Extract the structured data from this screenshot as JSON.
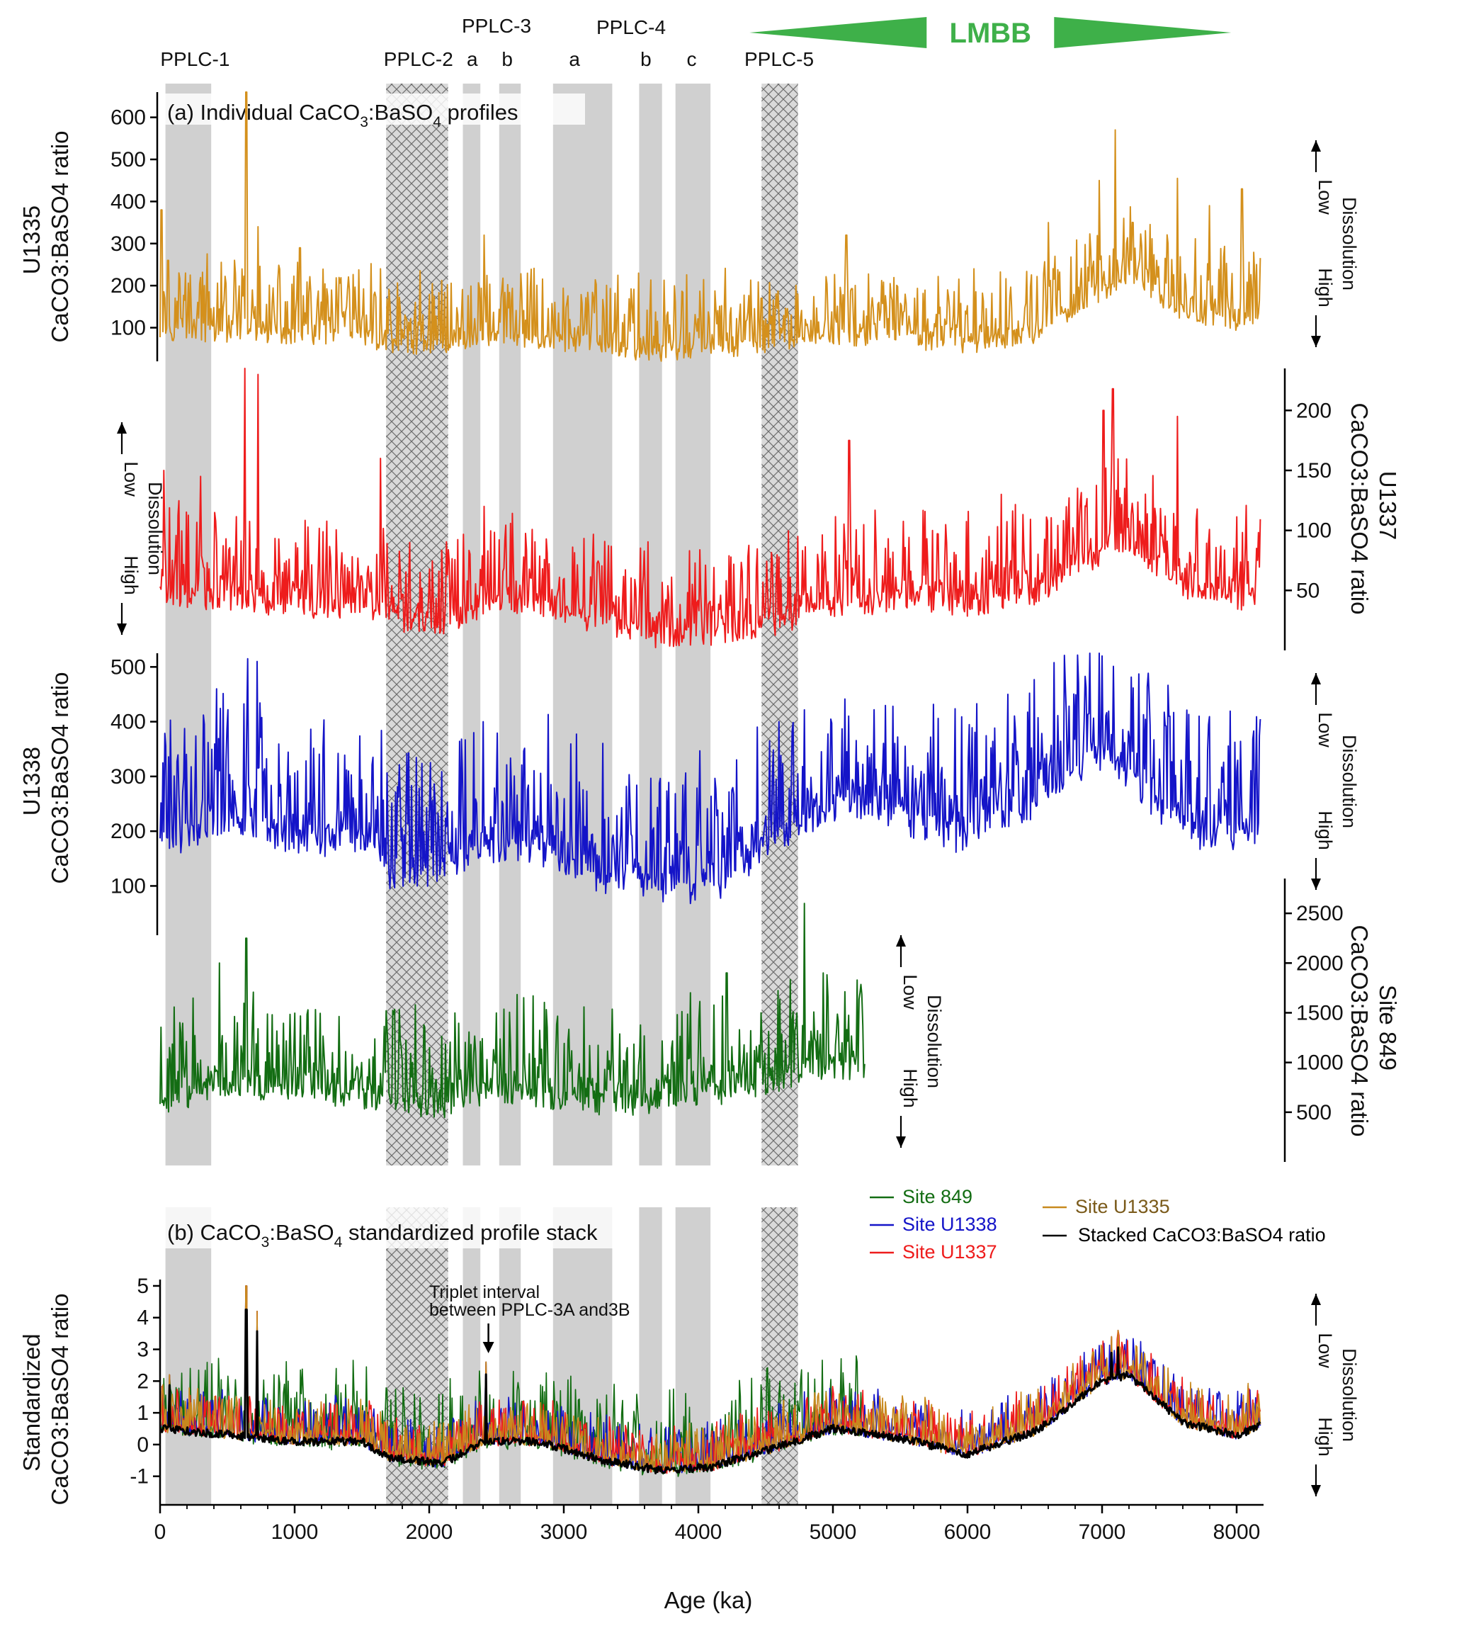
{
  "figure": {
    "x_axis_title": "Age (ka)",
    "x_ticks": [
      0,
      1000,
      2000,
      3000,
      4000,
      5000,
      6000,
      7000,
      8000
    ],
    "xlim": [
      0,
      8200
    ],
    "zone_labels": [
      {
        "text": "PPLC-1",
        "age": 260
      },
      {
        "text": "PPLC-2",
        "age": 1920
      },
      {
        "text": "a",
        "age": 2320
      },
      {
        "text": "PPLC-3",
        "age": 2500
      },
      {
        "text": "b",
        "age": 2580
      },
      {
        "text": "PPLC-4",
        "age": 3500
      },
      {
        "text": "a",
        "age": 3080
      },
      {
        "text": "b",
        "age": 3610
      },
      {
        "text": "c",
        "age": 3950
      },
      {
        "text": "PPLC-5",
        "age": 4600
      }
    ],
    "zones": [
      {
        "name": "PPLC-1",
        "start": 40,
        "end": 380,
        "pattern": "solid"
      },
      {
        "name": "PPLC-2",
        "start": 1680,
        "end": 2140,
        "pattern": "hatched"
      },
      {
        "name": "PPLC-3a",
        "start": 2250,
        "end": 2380,
        "pattern": "solid"
      },
      {
        "name": "PPLC-3b",
        "start": 2520,
        "end": 2680,
        "pattern": "solid"
      },
      {
        "name": "PPLC-4a",
        "start": 2920,
        "end": 3360,
        "pattern": "solid"
      },
      {
        "name": "PPLC-4b",
        "start": 3560,
        "end": 3730,
        "pattern": "solid"
      },
      {
        "name": "PPLC-4c",
        "start": 3830,
        "end": 4090,
        "pattern": "solid"
      },
      {
        "name": "PPLC-5",
        "start": 4470,
        "end": 4740,
        "pattern": "hatched"
      }
    ],
    "lmbb": {
      "label": "LMBB",
      "color": "#3eb049",
      "start": 4380,
      "end": 7960
    },
    "panel_a_label_prefix": "(a) Individual CaCO",
    "panel_a_label_suffix": " profiles",
    "panel_b_label_prefix": "(b) CaCO",
    "panel_b_label_suffix": "  standardized profile stack",
    "sub_3": "3",
    "sub_4": "4",
    "compound_mid": ":BaSO",
    "annotation": {
      "line1": "Triplet interval",
      "line2": "between PPLC-3A and3B",
      "age": 2440
    },
    "dissolution": {
      "title": "Dissolution",
      "low": "Low",
      "high": "High"
    }
  },
  "chart_data": [
    {
      "type": "line",
      "site": "U1335",
      "ylabel_line1": "U1335",
      "ylabel_line2": "CaCO3:BaSO4 ratio",
      "color": "#d4901c",
      "axis_side": "left",
      "ylim": [
        20,
        660
      ],
      "yticks": [
        100,
        200,
        300,
        400,
        500,
        600
      ],
      "x_range": [
        0,
        8180
      ],
      "baseline": {
        "ages": [
          0,
          500,
          1000,
          1500,
          1700,
          2100,
          2400,
          2800,
          3300,
          3700,
          4100,
          4500,
          5000,
          5500,
          6000,
          6500,
          7000,
          7200,
          7600,
          8000,
          8180
        ],
        "values": [
          90,
          80,
          70,
          75,
          55,
          50,
          75,
          65,
          50,
          35,
          45,
          55,
          75,
          70,
          55,
          80,
          180,
          220,
          130,
          110,
          120
        ]
      },
      "amplitude": 110,
      "peaks": [
        [
          10,
          380
        ],
        [
          60,
          260
        ],
        [
          140,
          230
        ],
        [
          330,
          200
        ],
        [
          640,
          660
        ],
        [
          730,
          340
        ],
        [
          1040,
          290
        ],
        [
          1640,
          240
        ],
        [
          2410,
          320
        ],
        [
          2690,
          180
        ],
        [
          4470,
          170
        ],
        [
          5100,
          320
        ],
        [
          5850,
          190
        ],
        [
          6050,
          240
        ],
        [
          6600,
          350
        ],
        [
          6980,
          450
        ],
        [
          7100,
          570
        ],
        [
          7160,
          360
        ],
        [
          7230,
          350
        ],
        [
          7560,
          455
        ],
        [
          7800,
          390
        ],
        [
          8040,
          430
        ],
        [
          8150,
          250
        ]
      ]
    },
    {
      "type": "line",
      "site": "U1337",
      "ylabel_line1": "U1337",
      "ylabel_line2": "CaCO3:BaSO4 ratio",
      "color": "#ee1c1c",
      "axis_side": "right",
      "ylim": [
        0,
        235
      ],
      "yticks": [
        50,
        100,
        150,
        200
      ],
      "x_range": [
        0,
        8180
      ],
      "baseline": {
        "ages": [
          0,
          500,
          1000,
          1500,
          1700,
          2100,
          2400,
          2800,
          3300,
          3700,
          4100,
          4500,
          5000,
          5500,
          6000,
          6500,
          7000,
          7200,
          7600,
          8000,
          8180
        ],
        "values": [
          45,
          40,
          35,
          35,
          25,
          18,
          30,
          35,
          20,
          10,
          12,
          18,
          35,
          40,
          35,
          45,
          80,
          90,
          50,
          40,
          45
        ]
      },
      "amplitude": 48,
      "peaks": [
        [
          30,
          150
        ],
        [
          300,
          145
        ],
        [
          630,
          235
        ],
        [
          730,
          230
        ],
        [
          1640,
          160
        ],
        [
          2410,
          120
        ],
        [
          4740,
          95
        ],
        [
          5120,
          175
        ],
        [
          6250,
          130
        ],
        [
          6880,
          120
        ],
        [
          7010,
          200
        ],
        [
          7080,
          218
        ],
        [
          7560,
          195
        ],
        [
          8150,
          85
        ]
      ]
    },
    {
      "type": "line",
      "site": "U1338",
      "ylabel_line1": "U1338",
      "ylabel_line2": "CaCO3:BaSO4 ratio",
      "color": "#1414c8",
      "axis_side": "left",
      "ylim": [
        10,
        525
      ],
      "yticks": [
        100,
        200,
        300,
        400,
        500
      ],
      "x_range": [
        0,
        8180
      ],
      "baseline": {
        "ages": [
          0,
          500,
          1000,
          1500,
          1700,
          2100,
          2400,
          2800,
          3300,
          3700,
          4100,
          4500,
          5000,
          5500,
          6000,
          6500,
          7000,
          7200,
          7600,
          8000,
          8180
        ],
        "values": [
          170,
          220,
          180,
          180,
          110,
          120,
          170,
          160,
          110,
          95,
          90,
          170,
          240,
          220,
          180,
          250,
          340,
          290,
          200,
          170,
          200
        ]
      },
      "amplitude": 150,
      "peaks": [
        [
          420,
          460
        ],
        [
          650,
          515
        ],
        [
          720,
          510
        ],
        [
          2400,
          400
        ],
        [
          4440,
          390
        ],
        [
          4600,
          400
        ],
        [
          6300,
          450
        ],
        [
          7000,
          520
        ],
        [
          7500,
          410
        ],
        [
          8140,
          290
        ]
      ]
    },
    {
      "type": "line",
      "site": "849",
      "ylabel_line1": "Site 849",
      "ylabel_line2": "CaCO3:BaSO4 ratio",
      "color": "#136d13",
      "axis_side": "right",
      "ylim": [
        0,
        2850
      ],
      "yticks": [
        500,
        1000,
        1500,
        2000,
        2500
      ],
      "x_range": [
        0,
        5240
      ],
      "baseline": {
        "ages": [
          0,
          400,
          1000,
          1600,
          2000,
          2500,
          3000,
          3500,
          4000,
          4500,
          4800,
          5240
        ],
        "values": [
          550,
          750,
          700,
          600,
          500,
          700,
          600,
          550,
          650,
          700,
          950,
          900
        ]
      },
      "amplitude": 620,
      "peaks": [
        [
          640,
          2250
        ],
        [
          440,
          2000
        ],
        [
          4790,
          2600
        ],
        [
          4930,
          1900
        ],
        [
          4210,
          1900
        ],
        [
          5200,
          1700
        ]
      ]
    },
    {
      "type": "line",
      "title": "CaCO3:BaSO4 standardized profile stack",
      "ylabel_line1": "Standardized",
      "ylabel_line2": "CaCO3:BaSO4 ratio",
      "axis_side": "left",
      "ylim": [
        -1.9,
        5.2
      ],
      "yticks": [
        -1,
        0,
        1,
        2,
        3,
        4,
        5
      ],
      "baseline": {
        "ages": [
          0,
          500,
          1000,
          1500,
          1700,
          2100,
          2400,
          2800,
          3300,
          3700,
          4100,
          4500,
          5000,
          5500,
          6000,
          6500,
          7000,
          7200,
          7600,
          8000,
          8180
        ],
        "values": [
          0.5,
          0.3,
          0.1,
          0.1,
          -0.4,
          -0.6,
          0.1,
          0.1,
          -0.5,
          -0.8,
          -0.7,
          -0.2,
          0.5,
          0.2,
          -0.3,
          0.4,
          2.0,
          2.2,
          0.7,
          0.3,
          0.6
        ]
      },
      "amplitude": 1.7,
      "peaks": [
        [
          70,
          2.2
        ],
        [
          640,
          5.0
        ],
        [
          720,
          4.2
        ],
        [
          2420,
          2.6
        ],
        [
          7070,
          3.4
        ],
        [
          7120,
          3.6
        ]
      ],
      "series": [
        {
          "name": "Site 849",
          "color": "#136d13",
          "x_range": [
            0,
            5240
          ],
          "noise": 0.9
        },
        {
          "name": "Site U1338",
          "color": "#1414c8",
          "x_range": [
            0,
            8180
          ],
          "noise": 0.5
        },
        {
          "name": "Site U1337",
          "color": "#ee1c1c",
          "x_range": [
            0,
            8180
          ],
          "noise": 0.5
        },
        {
          "name": "Site U1335",
          "color": "#c8891e",
          "x_range": [
            0,
            8180
          ],
          "noise": 0.5
        },
        {
          "name": "Stacked CaCO3:BaSO4 ratio",
          "color": "#000000",
          "x_range": [
            0,
            8180
          ],
          "noise": 0.0
        }
      ],
      "legend": [
        {
          "name": "Site 849",
          "color": "#136d13",
          "text_color": "#136d13"
        },
        {
          "name": "Site U1338",
          "color": "#1414c8",
          "text_color": "#1414c8"
        },
        {
          "name": "Site U1337",
          "color": "#ee1c1c",
          "text_color": "#ee1c1c"
        },
        {
          "name": "Site U1335",
          "color": "#c8891e",
          "text_color": "#7a5a1a"
        },
        {
          "name": "Stacked CaCO3:BaSO4 ratio",
          "color": "#000000",
          "text_color": "#000000"
        }
      ]
    }
  ]
}
